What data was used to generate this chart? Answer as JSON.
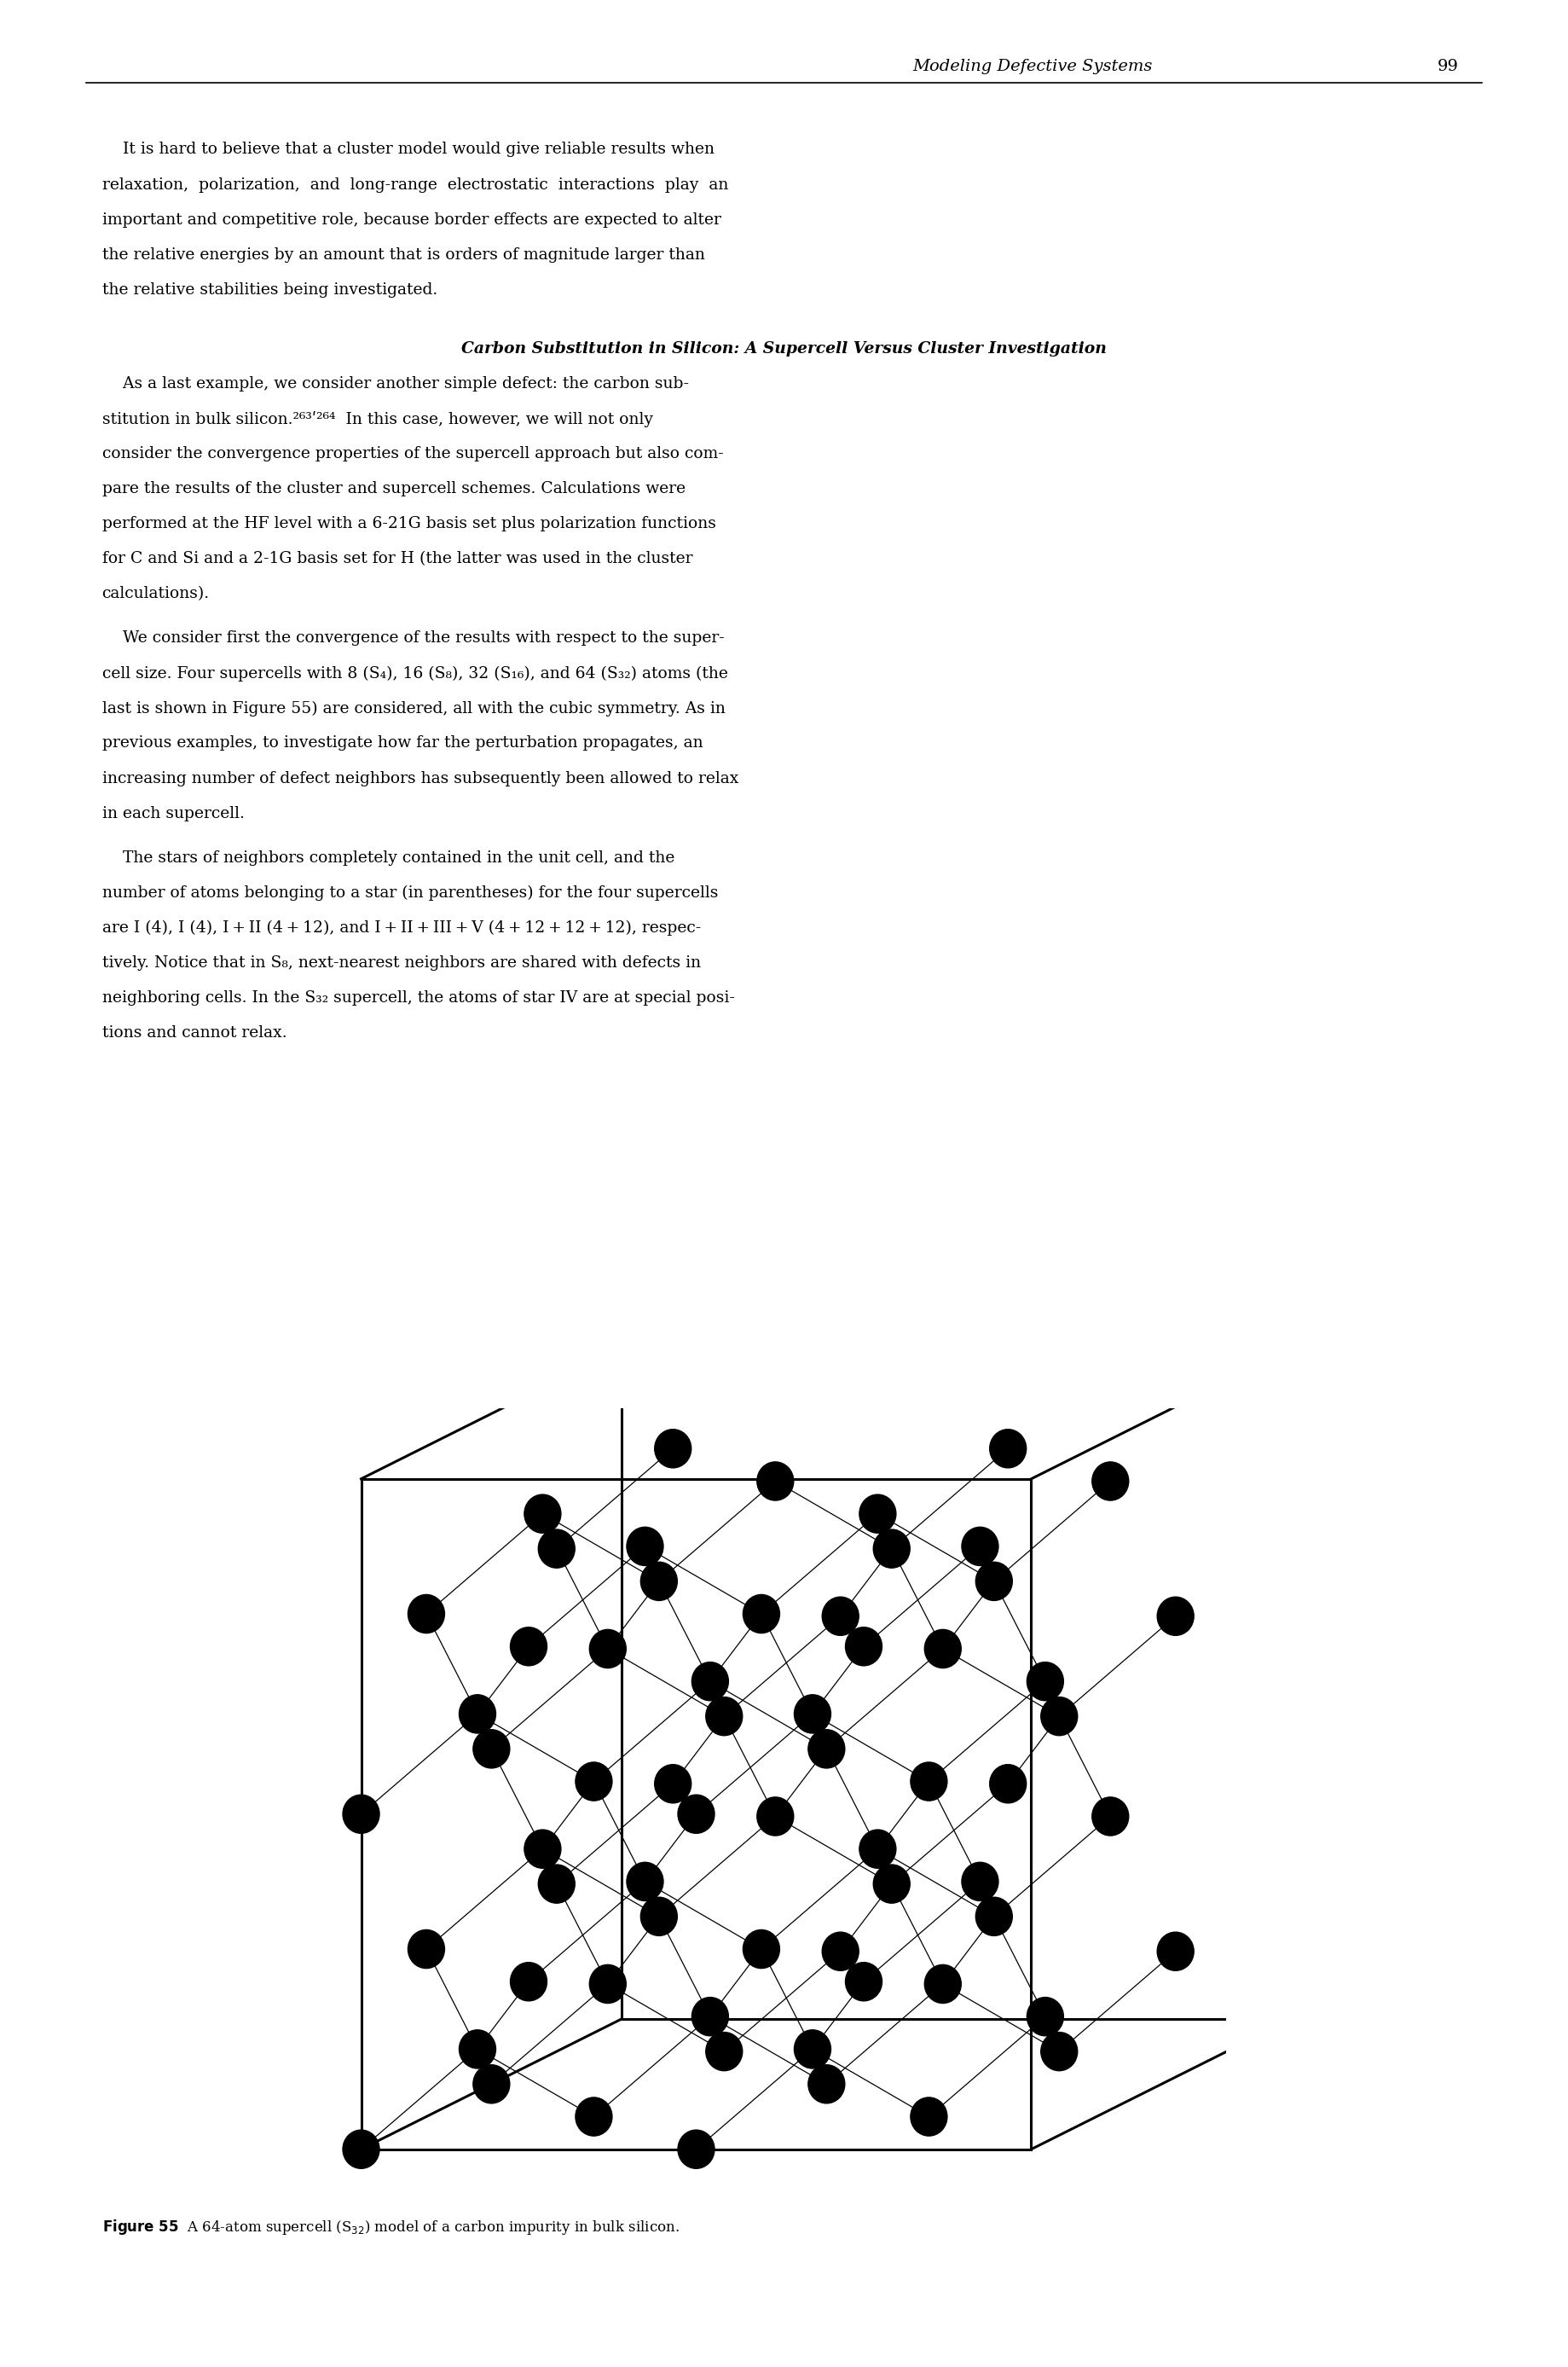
{
  "page_width": 18.39,
  "page_height": 27.75,
  "bg_color": "#ffffff",
  "header_title": "Modeling Defective Systems",
  "header_page": "99",
  "header_font_size": 14,
  "body_font_size": 13.5,
  "body_font_family": "serif",
  "text_color": "#000000",
  "p1_lines": [
    "    It is hard to believe that a cluster model would give reliable results when",
    "relaxation,  polarization,  and  long-range  electrostatic  interactions  play  an",
    "important and competitive role, because border effects are expected to alter",
    "the relative energies by an amount that is orders of magnitude larger than",
    "the relative stabilities being investigated."
  ],
  "section_title": "Carbon Substitution in Silicon: A Supercell Versus Cluster Investigation",
  "p2_lines": [
    "    As a last example, we consider another simple defect: the carbon sub-",
    "stitution in bulk silicon.²⁶³ʹ²⁶⁴  In this case, however, we will not only",
    "consider the convergence properties of the supercell approach but also com-",
    "pare the results of the cluster and supercell schemes. Calculations were",
    "performed at the HF level with a 6-21G basis set plus polarization functions",
    "for C and Si and a 2-1G basis set for H (the latter was used in the cluster",
    "calculations)."
  ],
  "p3_lines": [
    "    We consider first the convergence of the results with respect to the super-",
    "cell size. Four supercells with 8 (S₄), 16 (S₈), 32 (S₁₆), and 64 (S₃₂) atoms (the",
    "last is shown in Figure 55) are considered, all with the cubic symmetry. As in",
    "previous examples, to investigate how far the perturbation propagates, an",
    "increasing number of defect neighbors has subsequently been allowed to relax",
    "in each supercell."
  ],
  "p4_lines": [
    "    The stars of neighbors completely contained in the unit cell, and the",
    "number of atoms belonging to a star (in parentheses) for the four supercells",
    "are I (4), I (4), I + II (4 + 12), and I + II + III + V (4 + 12 + 12 + 12), respec-",
    "tively. Notice that in S₈, next-nearest neighbors are shared with defects in",
    "neighboring cells. In the S₃₂ supercell, the atoms of star IV are at special posi-",
    "tions and cannot relax."
  ],
  "figure_caption": "Figure 55  A 64-atom supercell (S$_{32}$) model of a carbon impurity in bulk silicon."
}
